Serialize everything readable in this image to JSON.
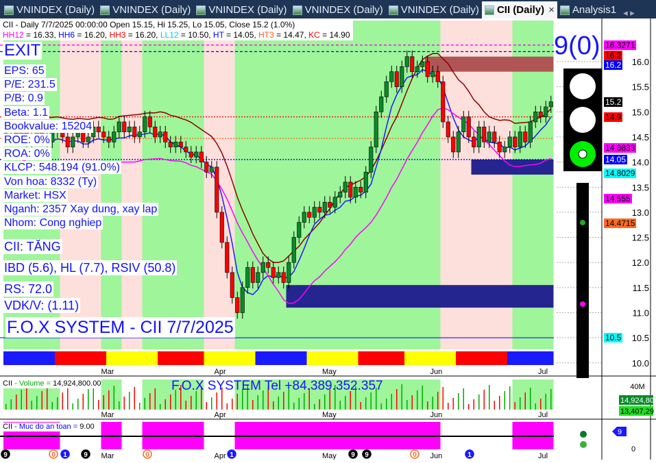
{
  "tabs": [
    {
      "label": "VNINDEX (Daily)",
      "active": false
    },
    {
      "label": "VNINDEX (Daily)",
      "active": false
    },
    {
      "label": "VNINDEX (Daily)",
      "active": false
    },
    {
      "label": "VNINDEX (Daily)",
      "active": false
    },
    {
      "label": "VNINDEX (Daily)",
      "active": false
    },
    {
      "label": "CII (Daily)",
      "active": true
    },
    {
      "label": "Analysis1",
      "active": false
    }
  ],
  "tab_close": "×",
  "tab_nav": "◂ ▸",
  "header": {
    "line1": "CII - Daily 7/7/2025 00:00:00 Open 15.15, Hi 15.25, Lo 15.05, Close 15.2 (1.0%)",
    "indicators": [
      {
        "label": "HH12",
        "value": " = 16.33, ",
        "color": "#ff00ff"
      },
      {
        "label": "HH6",
        "value": " = 16.20, ",
        "color": "#0000ff"
      },
      {
        "label": "HH3",
        "value": " = 16.20, ",
        "color": "#ff0000"
      },
      {
        "label": "LL12",
        "value": " = 10.50, ",
        "color": "#00c8ff"
      },
      {
        "label": "HT",
        "value": "  = 14.05, ",
        "color": "#0000ff"
      },
      {
        "label": "HT3",
        "value": "  = 14.47, ",
        "color": "#ff6020"
      },
      {
        "label": "KC",
        "value": " = 14.90",
        "color": "#ff0000"
      }
    ]
  },
  "signal": "EXIT",
  "score": "9(0)",
  "fundamentals": [
    "EPS: 65",
    "P/E: 231.5",
    "P/B: 0.9",
    "Beta: 1.1",
    "Bookvalue: 15204",
    "ROE: 0%",
    "ROA: 0%",
    "KLCP: 548.194 (91.0%)",
    "Von hoa: 8332 (Ty)",
    "Market: HSX",
    "Nganh: 2357 Xay dung, xay lap",
    "Nhom: Cong nghiep"
  ],
  "status": {
    "trend": "CII: TĂNG",
    "ibd": "IBD (5.6), HL (7.7), RSIV (50.8)",
    "rs": "RS: 72.0",
    "vdk": "VDK/V:  (1.11)"
  },
  "watermark": "F.O.X SYSTEM - CII 7/7/2025",
  "phone": "F.O.X SYSTEM Tel +84.389.352.357",
  "traffic_light": {
    "red": "off",
    "yellow": "off",
    "green": "on"
  },
  "chart_data": {
    "type": "candlestick",
    "ylim": [
      10.0,
      16.4
    ],
    "yticks": [
      "16.0",
      "15.5",
      "15.0",
      "14.5",
      "14.0",
      "13.5",
      "13.0",
      "12.5",
      "12.0",
      "11.5",
      "11.0",
      "10.5",
      "10.0"
    ],
    "ytick_values": [
      16.0,
      15.5,
      15.0,
      14.5,
      14.0,
      13.5,
      13.0,
      12.5,
      12.0,
      11.5,
      11.0,
      10.5,
      10.0
    ],
    "months": [
      {
        "label": "Mar",
        "index": 19
      },
      {
        "label": "Apr",
        "index": 41
      },
      {
        "label": "May",
        "index": 62
      },
      {
        "label": "Jun",
        "index": 83
      },
      {
        "label": "Jul",
        "index": 104
      }
    ],
    "close": [
      14.6,
      14.7,
      14.5,
      14.6,
      14.4,
      14.5,
      14.6,
      14.5,
      14.4,
      14.6,
      14.7,
      14.5,
      14.3,
      14.5,
      14.6,
      14.4,
      14.5,
      14.7,
      14.6,
      14.5,
      14.4,
      14.6,
      14.8,
      14.6,
      14.7,
      14.5,
      14.6,
      14.9,
      14.7,
      14.5,
      14.6,
      14.4,
      14.3,
      14.4,
      14.3,
      14.2,
      14.1,
      14.2,
      14.0,
      13.8,
      13.9,
      13.0,
      12.4,
      11.8,
      11.3,
      11.0,
      11.5,
      11.9,
      11.6,
      11.8,
      12.0,
      11.9,
      11.7,
      11.8,
      11.6,
      12.0,
      12.5,
      12.8,
      13.0,
      12.9,
      13.1,
      13.0,
      13.2,
      13.1,
      13.3,
      13.4,
      13.6,
      13.3,
      13.5,
      13.4,
      13.8,
      14.3,
      15.0,
      15.3,
      15.6,
      15.8,
      15.5,
      15.9,
      16.1,
      15.8,
      15.9,
      16.0,
      15.7,
      15.8,
      15.6,
      14.8,
      14.5,
      14.2,
      14.6,
      14.9,
      14.5,
      14.3,
      14.7,
      14.4,
      14.6,
      14.4,
      14.2,
      14.3,
      14.5,
      14.3,
      14.6,
      14.4,
      14.8,
      15.0,
      14.9,
      15.1,
      15.2
    ],
    "levels": [
      {
        "name": "HH12",
        "value": 16.33,
        "color": "#ff00ff",
        "style": "dashed"
      },
      {
        "name": "HH6",
        "value": 16.2,
        "color": "#0000ff",
        "style": "dashed"
      },
      {
        "name": "KC",
        "value": 14.9,
        "color": "#ff0000",
        "style": "dotted"
      },
      {
        "name": "HT3",
        "value": 14.47,
        "color": "#ff6020",
        "style": "dotted"
      },
      {
        "name": "HT",
        "value": 14.05,
        "color": "#0000ff",
        "style": "dotted"
      },
      {
        "name": "LL12",
        "value": 10.5,
        "color": "#0000ff",
        "style": "solid"
      }
    ],
    "bands": [
      [
        0,
        11,
        "up"
      ],
      [
        11,
        19,
        "down"
      ],
      [
        19,
        23,
        "up"
      ],
      [
        23,
        27,
        "down"
      ],
      [
        27,
        39,
        "up"
      ],
      [
        39,
        45,
        "down"
      ],
      [
        45,
        85,
        "up"
      ],
      [
        85,
        99,
        "down"
      ],
      [
        99,
        107,
        "up"
      ]
    ],
    "zones": [
      {
        "from": 55,
        "to": 107,
        "low": 11.1,
        "high": 11.55,
        "color": "#25258f"
      },
      {
        "from": 91,
        "to": 107,
        "low": 13.75,
        "high": 14.05,
        "color": "#25258f"
      },
      {
        "from": 82,
        "to": 107,
        "low": 15.8,
        "high": 16.1,
        "color": "#b05555"
      }
    ],
    "right_labels": [
      {
        "text": "16.3271",
        "value": 16.3271,
        "bg": "#ff00ff",
        "fg": "#000"
      },
      {
        "text": "16.2",
        "value": 16.2,
        "bg": "#ff0000",
        "fg": "#000"
      },
      {
        "text": "16.2",
        "value": 16.2,
        "bg": "#0000ff",
        "fg": "#fff"
      },
      {
        "text": "15.2",
        "value": 15.2,
        "bg": "#000",
        "fg": "#fff"
      },
      {
        "text": "14.9",
        "value": 14.9,
        "bg": "#ff0000",
        "fg": "#000"
      },
      {
        "text": "14.8833",
        "value": 14.8833,
        "bg": "#ff00ff",
        "fg": "#000"
      },
      {
        "text": "14.8029",
        "value": 14.8029,
        "bg": "#00ffff",
        "fg": "#000"
      },
      {
        "text": "14.555",
        "value": 14.555,
        "bg": "#ff00ff",
        "fg": "#000"
      },
      {
        "text": "14.4715",
        "value": 14.4715,
        "bg": "#ff6a20",
        "fg": "#000"
      },
      {
        "text": "14.05",
        "value": 14.05,
        "bg": "#0000ff",
        "fg": "#fff"
      },
      {
        "text": "10.5",
        "value": 10.5,
        "bg": "#00ffff",
        "fg": "#000"
      }
    ]
  },
  "volume": {
    "title": "CII",
    "label": " - Volume = ",
    "value": "14,924,800.00",
    "axis": "40M",
    "last": "14,924,800",
    "avg": "13,407,29"
  },
  "safety": {
    "title": "CII",
    "label": " - Muc do an toan = ",
    "value": "9.00",
    "badge": "9",
    "axis_zero": "0"
  },
  "bottom_markers": [
    "9",
    "0",
    "1",
    "9",
    "0",
    "1",
    "9",
    "9",
    "0",
    "1"
  ],
  "colors": {
    "up_band": "#9ef59a",
    "down_band": "#fde0dc",
    "up": "#0a8a2a",
    "down": "#ff0000"
  }
}
